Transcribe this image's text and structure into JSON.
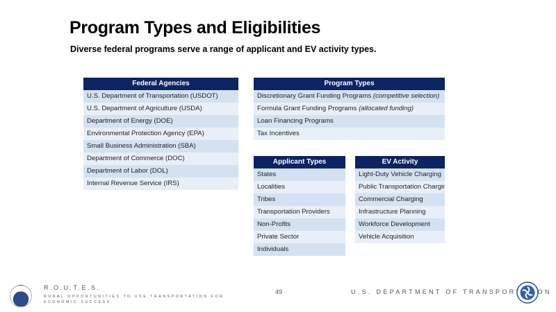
{
  "title": "Program Types and Eligibilities",
  "subtitle": "Diverse federal programs serve a range of applicant and EV activity types.",
  "tables": {
    "agencies": {
      "header": "Federal Agencies",
      "rows": [
        {
          "text": "U.S. Department of Transportation (USDOT)"
        },
        {
          "text": "U.S. Department of Agriculture (USDA)"
        },
        {
          "text": "Department of Energy (DOE)"
        },
        {
          "text": "Environmental Protection Agency (EPA)"
        },
        {
          "text": "Small Business Administration (SBA)"
        },
        {
          "text": "Department of Commerce (DOC)"
        },
        {
          "text": "Department of Labor (DOL)"
        },
        {
          "text": "Internal Revenue Service (IRS)"
        }
      ]
    },
    "program_types": {
      "header": "Program Types",
      "rows": [
        {
          "text": "Discretionary Grant Funding Programs ",
          "note": "(competitive selection)"
        },
        {
          "text": "Formula Grant Funding Programs ",
          "note": "(allocated funding)"
        },
        {
          "text": "Loan Financing Programs"
        },
        {
          "text": "Tax Incentives"
        }
      ]
    },
    "applicant_types": {
      "header": "Applicant Types",
      "rows": [
        {
          "text": "States"
        },
        {
          "text": "Localities"
        },
        {
          "text": "Tribes"
        },
        {
          "text": "Transportation Providers"
        },
        {
          "text": "Non-Profits"
        },
        {
          "text": "Private Sector"
        },
        {
          "text": "Individuals"
        }
      ]
    },
    "ev_activity": {
      "header": "EV Activity",
      "rows": [
        {
          "text": "Light-Duty Vehicle Charging"
        },
        {
          "text": "Public Transportation Charging"
        },
        {
          "text": "Commercial Charging"
        },
        {
          "text": "Infrastructure Planning"
        },
        {
          "text": "Workforce Development"
        },
        {
          "text": "Vehicle Acquisition"
        }
      ]
    }
  },
  "footer": {
    "routes_title": "R.O.U.T.E.S.",
    "routes_subtitle": "RURAL OPPORTUNITIES TO USE TRANSPORTATION FOR ECONOMIC SUCCESS",
    "page_number": "49",
    "department": "U.S. DEPARTMENT OF TRANSPORTATION",
    "logos": [
      "routes-logo",
      "usdot-seal"
    ]
  },
  "colors": {
    "header": "#0c2461",
    "row_dark": "#d3e1f1",
    "row_light": "#e9eff8"
  }
}
